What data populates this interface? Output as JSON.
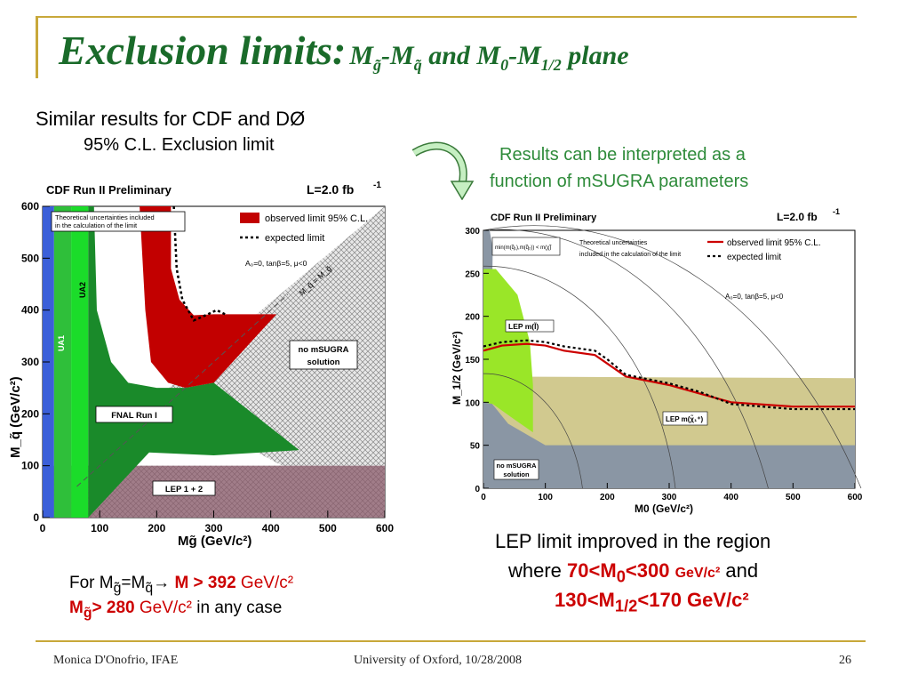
{
  "slide": {
    "title_main": "Exclusion limits:",
    "title_rest": "M",
    "title_sub1": "g̃",
    "title_dash": "-M",
    "title_sub2": "q̃",
    "title_and": " and ",
    "title_m0": "M",
    "title_m0_sub": "0",
    "title_m12": "-M",
    "title_m12_sub": "1/2",
    "title_plane": " plane",
    "line1": "Similar results for CDF and DØ",
    "line2": "95% C.L. Exclusion limit",
    "right_note_1": "Results can be interpreted as a",
    "right_note_2": "function of mSUGRA parameters",
    "lep_1": "LEP limit improved in the region",
    "lep_2_a": "where ",
    "lep_2_b": "70<M",
    "lep_2_b_sub": "0",
    "lep_2_c": "<300 ",
    "lep_2_d": "GeV/c²",
    "lep_2_e": " and",
    "lep_3_a": "130<M",
    "lep_3_a_sub": "1/2",
    "lep_3_b": "<170 GeV/c²",
    "for_1_a": "For M",
    "for_1_sub1": "g̃",
    "for_1_b": "=M",
    "for_1_sub2": "q̃",
    "for_1_c": "→ ",
    "for_1_d": "M > 392",
    "for_1_e": " GeV/c²",
    "for_2_a": "M",
    "for_2_sub": "g̃",
    "for_2_b": "> 280",
    "for_2_c": " GeV/c²",
    "for_2_d": " in any case",
    "footer_left": "Monica D'Onofrio, IFAE",
    "footer_center": "University of Oxford, 10/28/2008",
    "footer_right": "26"
  },
  "colors": {
    "title_green": "#1a6b2a",
    "note_green": "#2e8b3a",
    "red": "#cc0000"
  },
  "chart_data": [
    {
      "type": "area",
      "header_left": "CDF Run II Preliminary",
      "header_right": "L=2.0 fb",
      "header_right_sup": "-1",
      "xlabel": "M",
      "xlabel_sub": "g̃",
      "xlabel_unit": " (GeV/c²)",
      "ylabel": "M_q̃ (GeV/c²)",
      "xlim": [
        0,
        600
      ],
      "ylim": [
        0,
        600
      ],
      "xticks": [
        0,
        100,
        200,
        300,
        400,
        500,
        600
      ],
      "yticks": [
        0,
        100,
        200,
        300,
        400,
        500,
        600
      ],
      "legend": {
        "box_1": "Theoretical uncertainties included",
        "box_2": "in the calculation of the limit",
        "observed": "observed limit 95% C.L.",
        "expected": "expected limit",
        "params": "A₀=0, tanβ=5, μ<0"
      },
      "labels": {
        "diag": "M_q̃ = M_g̃",
        "ua1": "UA1",
        "ua2": "UA2",
        "fnal": "FNAL Run I",
        "lep": "LEP 1 + 2",
        "nosugra_1": "no mSUGRA",
        "nosugra_2": "solution"
      },
      "regions": [
        {
          "name": "UA1",
          "color": "#3b5fd9",
          "polygon": [
            [
              0,
              0
            ],
            [
              20,
              0
            ],
            [
              20,
              600
            ],
            [
              0,
              600
            ]
          ]
        },
        {
          "name": "UA2",
          "color": "#2fbf3a",
          "polygon": [
            [
              20,
              0
            ],
            [
              50,
              0
            ],
            [
              50,
              600
            ],
            [
              20,
              600
            ]
          ]
        },
        {
          "name": "UA2b",
          "color": "#1bdc2a",
          "polygon": [
            [
              50,
              0
            ],
            [
              80,
              0
            ],
            [
              80,
              600
            ],
            [
              50,
              600
            ]
          ]
        },
        {
          "name": "FNAL Run I",
          "color": "#1a8a2a",
          "polygon": [
            [
              80,
              0
            ],
            [
              250,
              200
            ],
            [
              300,
              260
            ],
            [
              250,
              250
            ],
            [
              200,
              250
            ],
            [
              150,
              260
            ],
            [
              120,
              300
            ],
            [
              95,
              400
            ],
            [
              90,
              600
            ],
            [
              80,
              600
            ]
          ]
        },
        {
          "name": "FNAL ext",
          "color": "#1a8a2a",
          "polygon": [
            [
              95,
              130
            ],
            [
              300,
              120
            ],
            [
              450,
              130
            ],
            [
              300,
              260
            ],
            [
              250,
              230
            ],
            [
              95,
              230
            ]
          ]
        },
        {
          "name": "observed",
          "color": "#c20000",
          "polygon": [
            [
              170,
              600
            ],
            [
              225,
              600
            ],
            [
              225,
              480
            ],
            [
              240,
              420
            ],
            [
              265,
              390
            ],
            [
              300,
              392
            ],
            [
              320,
              392
            ],
            [
              410,
              392
            ],
            [
              300,
              260
            ],
            [
              250,
              250
            ],
            [
              220,
              260
            ],
            [
              190,
              300
            ],
            [
              180,
              400
            ],
            [
              175,
              500
            ]
          ]
        }
      ],
      "expected_line": {
        "x": [
          230,
          235,
          245,
          265,
          290,
          305,
          320
        ],
        "y": [
          600,
          480,
          420,
          380,
          392,
          400,
          392
        ]
      },
      "lep_band_top": 100
    },
    {
      "type": "line",
      "header_left": "CDF Run II Preliminary",
      "header_right": "L=2.0 fb",
      "header_right_sup": "-1",
      "xlabel": "M",
      "xlabel_sub": "0",
      "xlabel_unit": " (GeV/c²)",
      "ylabel": "M_1/2 (GeV/c²)",
      "xlim": [
        0,
        600
      ],
      "ylim": [
        0,
        300
      ],
      "xticks": [
        0,
        100,
        200,
        300,
        400,
        500,
        600
      ],
      "yticks": [
        0,
        50,
        100,
        150,
        200,
        250,
        300
      ],
      "legend": {
        "box_1": "min(m(q̃₁),m(q̃₂)) < m(χ̃)",
        "theory_1": "Theoretical uncertainties",
        "theory_2": "included in the calculation of the limit",
        "observed": "observed limit 95% C.L.",
        "expected": "expected limit",
        "params": "A₀=0, tanβ=5, μ<0"
      },
      "labels": {
        "lep_l": "LEP m(l̃)",
        "lep_chi": "LEP m(χ̃₁⁺)",
        "nosugra_1": "no mSUGRA",
        "nosugra_2": "solution"
      },
      "series": [
        {
          "name": "observed limit 95% C.L.",
          "color": "#cc0000",
          "x": [
            0,
            30,
            70,
            100,
            130,
            180,
            200,
            230,
            300,
            350,
            400,
            500,
            600
          ],
          "y": [
            160,
            166,
            168,
            166,
            160,
            155,
            145,
            130,
            120,
            110,
            100,
            95,
            95
          ]
        },
        {
          "name": "expected limit",
          "color": "#000000",
          "x": [
            0,
            30,
            70,
            100,
            130,
            180,
            200,
            230,
            300,
            350,
            400,
            500,
            600
          ],
          "y": [
            165,
            170,
            172,
            170,
            165,
            160,
            150,
            132,
            122,
            112,
            98,
            92,
            92
          ]
        }
      ]
    }
  ]
}
